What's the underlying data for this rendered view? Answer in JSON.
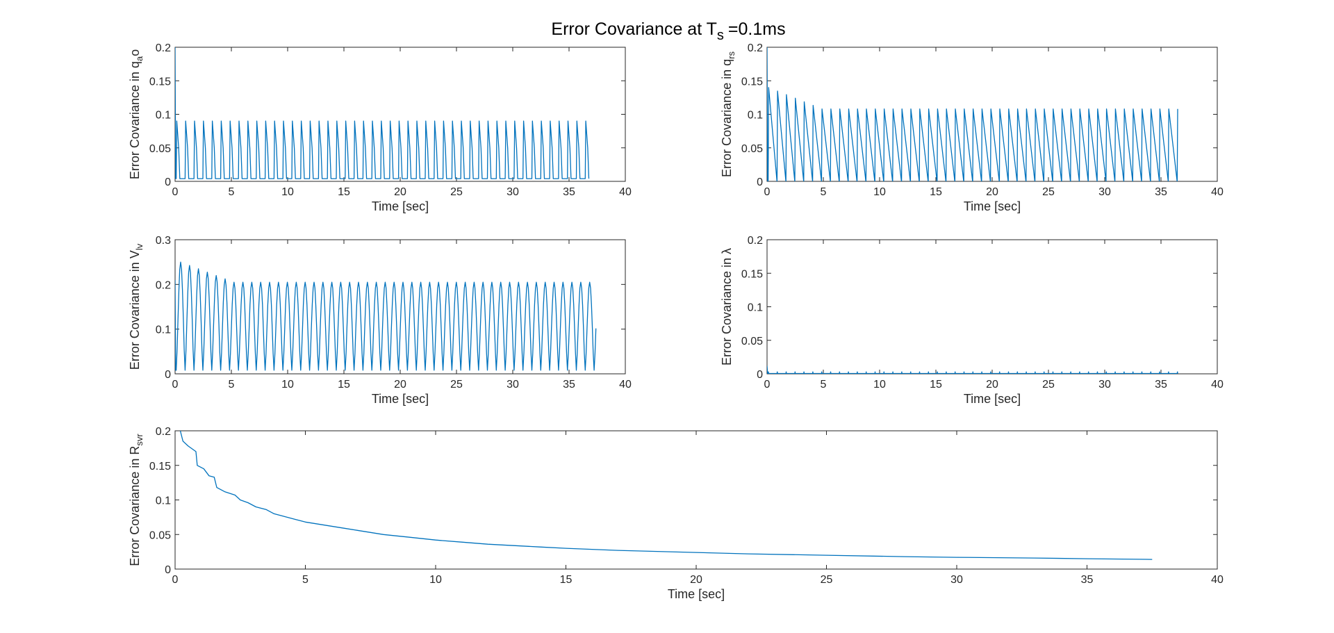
{
  "figure": {
    "title_main": "Error Covariance at T",
    "title_sub": "s",
    "title_suffix": "=0.1ms"
  },
  "chart_data": [
    {
      "id": "qao",
      "type": "line",
      "xlabel": "Time [sec]",
      "ylabel": {
        "main": "Error Covariance in q",
        "sub": "a",
        "suffix": "o"
      },
      "xlim": [
        0,
        40
      ],
      "ylim": [
        0,
        0.2
      ],
      "xticks": [
        "0",
        "5",
        "10",
        "15",
        "20",
        "25",
        "30",
        "35",
        "40"
      ],
      "yticks": [
        "0",
        "0.05",
        "0.1",
        "0.15",
        "0.2"
      ],
      "grid": false,
      "series": [
        {
          "color": "#0072BD",
          "values": {
            "kind": "pulse",
            "t_end": 37.2,
            "period": 0.79,
            "t0": 0.1,
            "initial_peak": 0.2,
            "peak": 0.09,
            "peak_first": 0.09,
            "baseline": 0.004
          }
        }
      ]
    },
    {
      "id": "qrs",
      "type": "line",
      "xlabel": "Time [sec]",
      "ylabel": {
        "main": "Error Covariance in q",
        "sub": "rs",
        "suffix": ""
      },
      "xlim": [
        0,
        40
      ],
      "ylim": [
        0,
        0.2
      ],
      "xticks": [
        "0",
        "5",
        "10",
        "15",
        "20",
        "25",
        "30",
        "35",
        "40"
      ],
      "yticks": [
        "0",
        "0.05",
        "0.1",
        "0.15",
        "0.2"
      ],
      "grid": false,
      "series": [
        {
          "color": "#0072BD",
          "values": {
            "kind": "sawtooth",
            "t_end": 37.2,
            "period": 0.79,
            "t0": 0.1,
            "initial_peak": 0.2,
            "peak": 0.108,
            "peak_first": 0.14,
            "baseline": 0.0
          }
        }
      ]
    },
    {
      "id": "vlv",
      "type": "line",
      "xlabel": "Time [sec]",
      "ylabel": {
        "main": "Error Covariance in V",
        "sub": "lv",
        "suffix": ""
      },
      "xlim": [
        0,
        40
      ],
      "ylim": [
        0,
        0.3
      ],
      "xticks": [
        "0",
        "5",
        "10",
        "15",
        "20",
        "25",
        "30",
        "35",
        "40"
      ],
      "yticks": [
        "0",
        "0.1",
        "0.2",
        "0.3"
      ],
      "grid": false,
      "series": [
        {
          "color": "#0072BD",
          "values": {
            "kind": "wave",
            "t_end": 37.4,
            "period": 0.79,
            "t0": 0.1,
            "initial_peak": 0.21,
            "peak": 0.205,
            "peak_first": 0.25,
            "baseline": 0.008
          }
        }
      ]
    },
    {
      "id": "lambda",
      "type": "line",
      "xlabel": "Time [sec]",
      "ylabel": {
        "main": "Error Covariance in λ",
        "sub": "",
        "suffix": ""
      },
      "xlim": [
        0,
        40
      ],
      "ylim": [
        0,
        0.2
      ],
      "xticks": [
        "0",
        "5",
        "10",
        "15",
        "20",
        "25",
        "30",
        "35",
        "40"
      ],
      "yticks": [
        "0",
        "0.05",
        "0.1",
        "0.15",
        "0.2"
      ],
      "grid": false,
      "series": [
        {
          "color": "#0072BD",
          "values": {
            "kind": "flat",
            "t_end": 37.2,
            "period": 0.79,
            "t0": 0.1,
            "initial_peak": 0.012,
            "peak": 0.003,
            "peak_first": 0.003,
            "baseline": 0.0005
          }
        }
      ]
    },
    {
      "id": "rsvr",
      "type": "line",
      "xlabel": "Time [sec]",
      "ylabel": {
        "main": "Error Covariance in R",
        "sub": "svr",
        "suffix": ""
      },
      "xlim": [
        0,
        40
      ],
      "ylim": [
        0,
        0.2
      ],
      "xticks": [
        "0",
        "5",
        "10",
        "15",
        "20",
        "25",
        "30",
        "35",
        "40"
      ],
      "yticks": [
        "0",
        "0.05",
        "0.1",
        "0.15",
        "0.2"
      ],
      "grid": false,
      "series": [
        {
          "color": "#0072BD",
          "values": {
            "kind": "decay",
            "t_end": 37.5,
            "points": [
              [
                0.2,
                0.2
              ],
              [
                0.3,
                0.185
              ],
              [
                0.5,
                0.178
              ],
              [
                0.8,
                0.17
              ],
              [
                0.85,
                0.15
              ],
              [
                1.1,
                0.145
              ],
              [
                1.3,
                0.135
              ],
              [
                1.5,
                0.133
              ],
              [
                1.6,
                0.118
              ],
              [
                1.9,
                0.112
              ],
              [
                2.3,
                0.107
              ],
              [
                2.5,
                0.1
              ],
              [
                2.8,
                0.096
              ],
              [
                3.1,
                0.09
              ],
              [
                3.5,
                0.086
              ],
              [
                3.8,
                0.08
              ],
              [
                4.2,
                0.076
              ],
              [
                4.6,
                0.072
              ],
              [
                5.0,
                0.068
              ],
              [
                5.5,
                0.065
              ],
              [
                6,
                0.062
              ],
              [
                6.5,
                0.059
              ],
              [
                7,
                0.056
              ],
              [
                7.5,
                0.053
              ],
              [
                8,
                0.05
              ],
              [
                9,
                0.046
              ],
              [
                10,
                0.042
              ],
              [
                11,
                0.039
              ],
              [
                12,
                0.036
              ],
              [
                13,
                0.034
              ],
              [
                14,
                0.032
              ],
              [
                15,
                0.03
              ],
              [
                17,
                0.027
              ],
              [
                20,
                0.024
              ],
              [
                22,
                0.022
              ],
              [
                25,
                0.02
              ],
              [
                28,
                0.018
              ],
              [
                30,
                0.017
              ],
              [
                33,
                0.016
              ],
              [
                35,
                0.015
              ],
              [
                37.5,
                0.014
              ]
            ]
          }
        }
      ]
    }
  ]
}
